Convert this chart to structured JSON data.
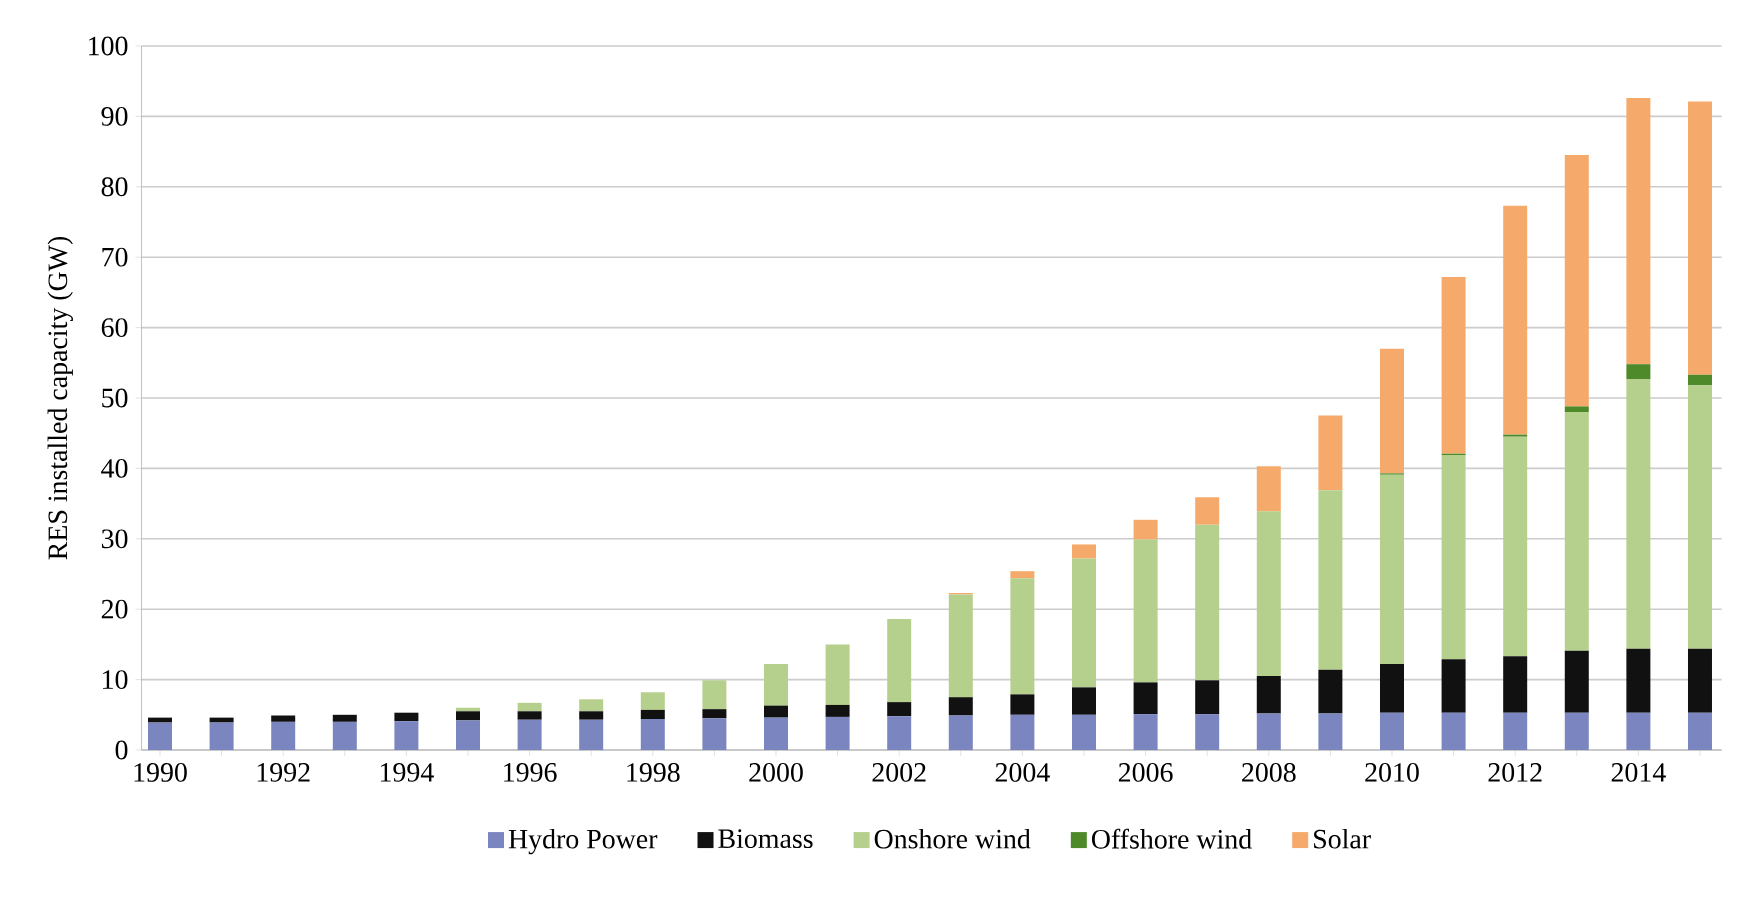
{
  "chart_data": {
    "type": "bar",
    "stacked": true,
    "ylabel": "RES installed capacity (GW)",
    "categories": [
      "1990",
      null,
      "1992",
      null,
      "1994",
      null,
      "1996",
      null,
      "1998",
      null,
      "2000",
      null,
      "2002",
      null,
      "2004",
      null,
      "2006",
      null,
      "2008",
      null,
      "2010",
      null,
      "2012",
      null,
      "2014",
      null
    ],
    "series": [
      {
        "name": "Hydro Power",
        "color": "#7b86c0",
        "values": [
          3.9,
          3.9,
          4.0,
          4.0,
          4.1,
          4.2,
          4.3,
          4.3,
          4.4,
          4.5,
          4.6,
          4.7,
          4.8,
          4.9,
          5.0,
          5.0,
          5.1,
          5.1,
          5.2,
          5.2,
          5.3,
          5.3,
          5.3,
          5.3,
          5.3,
          5.3
        ]
      },
      {
        "name": "Biomass",
        "color": "#111111",
        "values": [
          0.7,
          0.7,
          0.9,
          1.0,
          1.2,
          1.3,
          1.2,
          1.2,
          1.3,
          1.3,
          1.7,
          1.7,
          2.0,
          2.6,
          2.9,
          3.9,
          4.5,
          4.8,
          5.3,
          6.2,
          6.9,
          7.6,
          8.0,
          8.8,
          9.1,
          9.1
        ]
      },
      {
        "name": "Onshore wind",
        "color": "#b5cf8c",
        "values": [
          0,
          0,
          0,
          0,
          0,
          0.5,
          1.2,
          1.7,
          2.5,
          4.1,
          5.9,
          8.6,
          11.8,
          14.6,
          16.5,
          18.3,
          20.3,
          22.1,
          23.4,
          25.5,
          26.9,
          29.0,
          31.2,
          33.9,
          38.3,
          37.4
        ]
      },
      {
        "name": "Offshore wind",
        "color": "#4f8a2a",
        "values": [
          0,
          0,
          0,
          0,
          0,
          0,
          0,
          0,
          0,
          0,
          0,
          0,
          0,
          0,
          0,
          0,
          0,
          0,
          0,
          0,
          0.2,
          0.2,
          0.3,
          0.8,
          2.1,
          1.5
        ]
      },
      {
        "name": "Solar",
        "color": "#f5a96a",
        "values": [
          0,
          0,
          0,
          0,
          0,
          0,
          0,
          0,
          0,
          0,
          0,
          0,
          0,
          0.2,
          1.0,
          2.0,
          2.8,
          3.9,
          6.4,
          10.6,
          17.7,
          25.1,
          32.5,
          35.7,
          37.8,
          38.8
        ]
      }
    ],
    "ylim": [
      0,
      100
    ],
    "yticks": [
      0,
      10,
      20,
      30,
      40,
      50,
      60,
      70,
      80,
      90,
      100
    ],
    "grid": "y",
    "legend": "bottom"
  }
}
